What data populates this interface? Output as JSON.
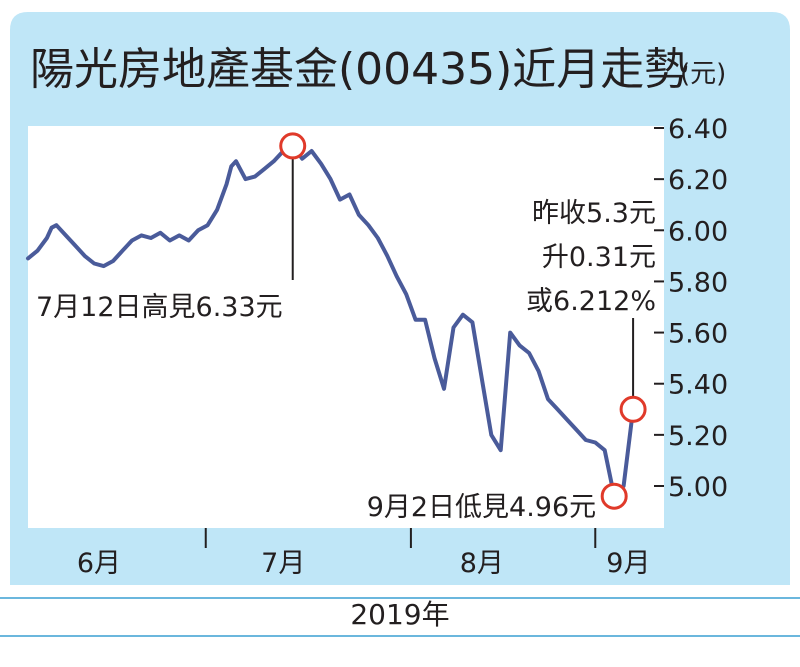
{
  "colors": {
    "panel_bg": "#bfe6f7",
    "plot_bg": "#ffffff",
    "line": "#4a5b9a",
    "marker": "#e03a2a",
    "text": "#231f20",
    "rule": "#6bb7dd"
  },
  "chart_data": {
    "type": "line",
    "title": "陽光房地產基金(00435)近月走勢",
    "unit": "(元)",
    "year_label": "2019年",
    "months": [
      "6月",
      "7月",
      "8月",
      "9月"
    ],
    "yticks": [
      "6.40",
      "6.20",
      "6.00",
      "5.80",
      "5.60",
      "5.40",
      "5.20",
      "5.00"
    ],
    "ylim": [
      4.9,
      6.45
    ],
    "xlim": [
      0,
      68
    ],
    "month_separators": [
      18.8,
      40.5,
      60.0
    ],
    "month_label_positions": [
      7.5,
      27.0,
      48.0,
      63.5
    ],
    "series": [
      {
        "x": [
          0,
          1,
          2,
          2.5,
          3,
          4,
          5,
          6,
          7,
          8,
          9,
          9.5,
          10,
          11,
          12,
          13,
          14,
          15,
          16,
          17,
          18,
          19,
          20,
          21,
          21.5,
          22,
          23,
          24,
          25,
          26,
          27,
          28,
          29,
          30,
          31,
          32,
          33,
          34,
          35,
          36,
          37,
          38,
          39,
          40,
          41,
          42,
          43,
          44,
          45,
          46,
          47,
          48,
          49,
          50,
          51,
          52,
          53,
          54,
          55,
          56,
          57,
          58,
          59,
          60,
          61,
          62,
          63,
          64
        ],
        "y": [
          5.89,
          5.92,
          5.97,
          6.01,
          6.02,
          5.98,
          5.94,
          5.9,
          5.87,
          5.86,
          5.88,
          5.9,
          5.92,
          5.96,
          5.98,
          5.97,
          5.99,
          5.96,
          5.98,
          5.96,
          6.0,
          6.02,
          6.08,
          6.18,
          6.25,
          6.27,
          6.2,
          6.21,
          6.24,
          6.27,
          6.31,
          6.33,
          6.28,
          6.31,
          6.26,
          6.2,
          6.12,
          6.14,
          6.06,
          6.02,
          5.97,
          5.9,
          5.82,
          5.75,
          5.65,
          5.65,
          5.5,
          5.38,
          5.62,
          5.67,
          5.64,
          5.42,
          5.2,
          5.14,
          5.6,
          5.55,
          5.52,
          5.45,
          5.34,
          5.3,
          5.26,
          5.22,
          5.18,
          5.17,
          5.14,
          4.96,
          5.0,
          5.3
        ]
      }
    ],
    "annotations": {
      "high_x": 28,
      "high_y": 6.33,
      "high_label": "7月12日高見6.33元",
      "low_x": 62,
      "low_y": 4.96,
      "low_label": "9月2日低見4.96元",
      "last_x": 64,
      "last_y": 5.3,
      "last_lines": [
        "昨收5.3元",
        "升0.31元",
        "或6.212%"
      ]
    }
  }
}
